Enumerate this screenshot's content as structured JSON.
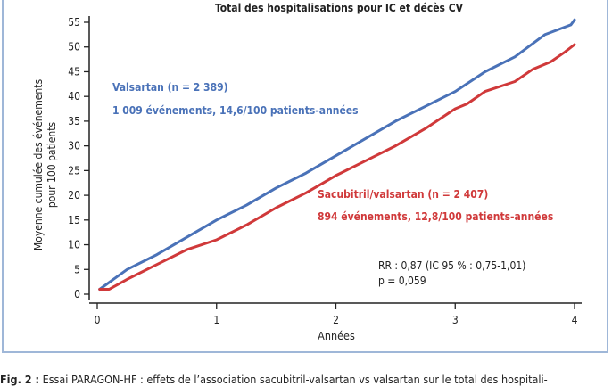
{
  "chart_data": {
    "type": "line",
    "title": "Total des hospitalisations pour IC et décès CV",
    "xlabel": "Années",
    "ylabel": [
      "Moyenne cumulée des événements",
      "pour 100 patients"
    ],
    "xlim": [
      0,
      4
    ],
    "ylim": [
      0,
      55
    ],
    "xticks": [
      0,
      1,
      2,
      3,
      4
    ],
    "yticks": [
      0,
      5,
      10,
      15,
      20,
      25,
      30,
      35,
      40,
      45,
      50,
      55
    ],
    "grid": false,
    "series": [
      {
        "name": "Valsartan (n = 2 389)",
        "detail": "1 009 événements, 14,6/100 patients-années",
        "color": "#4a72b8",
        "x": [
          0.02,
          0.25,
          0.5,
          0.75,
          1,
          1.25,
          1.5,
          1.75,
          2,
          2.25,
          2.5,
          2.75,
          3,
          3.25,
          3.5,
          3.75,
          3.97,
          4
        ],
        "y": [
          1,
          5,
          8,
          11.5,
          15,
          18,
          21.5,
          24.5,
          28,
          31.5,
          35,
          38,
          41,
          45,
          48,
          52.5,
          54.5,
          55.5
        ]
      },
      {
        "name": "Sacubitril/valsartan (n = 2 407)",
        "detail": "894 événements, 12,8/100 patients-années",
        "color": "#d0393a",
        "x": [
          0.02,
          0.1,
          0.25,
          0.5,
          0.75,
          1,
          1.25,
          1.5,
          1.75,
          2,
          2.25,
          2.5,
          2.75,
          3,
          3.1,
          3.25,
          3.5,
          3.65,
          3.8,
          3.92,
          4
        ],
        "y": [
          1,
          1,
          3,
          6,
          9,
          11,
          14,
          17.5,
          20.5,
          24,
          27,
          30,
          33.5,
          37.5,
          38.5,
          41,
          43,
          45.5,
          47,
          49,
          50.5
        ]
      }
    ],
    "annotations": [
      "RR : 0,87 (IC 95 % : 0,75-1,01)",
      "p = 0,059"
    ]
  },
  "caption": {
    "label": "Fig. 2 :",
    "text": " Essai PARAGON-HF : effets de l’association sacubitril-valsartan vs valsartan sur le total des hospitali-"
  }
}
